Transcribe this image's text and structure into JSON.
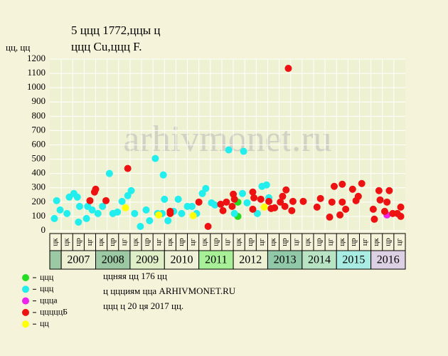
{
  "chart_data": {
    "type": "scatter",
    "title": "5 ццц 1772,ццы ц",
    "subtitle": "ццц Cu,ццц F.",
    "y_label": "цц, цц",
    "watermark": "arhivmonet.ru",
    "xlim": [
      0,
      31
    ],
    "ylim": [
      0,
      1200
    ],
    "yticks": [
      0,
      100,
      200,
      300,
      400,
      500,
      600,
      700,
      800,
      900,
      1000,
      1100,
      1200
    ],
    "grid": true,
    "column_labels": [
      "цк",
      "цк",
      "цр",
      "цг",
      "цк",
      "цр",
      "цг",
      "цк",
      "цр",
      "цг",
      "цк",
      "цр",
      "цг",
      "цк",
      "цр",
      "цг",
      "цк",
      "цр",
      "цг",
      "цк",
      "цр",
      "цг",
      "цк",
      "цр",
      "цг",
      "цк",
      "цр",
      "цг",
      "цк",
      "цр",
      "цг"
    ],
    "years": [
      "2007",
      "2008",
      "2009",
      "2010",
      "2011",
      "2012",
      "2013",
      "2014",
      "2015",
      "2016"
    ],
    "year_colors": [
      "#eef0d4",
      "#9cc8a4",
      "#dff0c8",
      "#f0f2d8",
      "#a8f098",
      "#eef0d4",
      "#90c8a8",
      "#b8e4c4",
      "#a8ece4",
      "#dcd0e4"
    ],
    "series": [
      {
        "name": "ццц",
        "color": "#22dd22",
        "x": [
          16.4,
          16.4
        ],
        "values": [
          100,
          200
        ]
      },
      {
        "name": "ццц",
        "color": "#22eeee",
        "x": [
          0.4,
          0.6,
          0.9,
          1.5,
          1.7,
          2.1,
          2.4,
          2.5,
          2.6,
          3.2,
          3.3,
          3.7,
          4.2,
          4.6,
          5.2,
          5.5,
          5.9,
          6.3,
          6.8,
          7.1,
          7.4,
          7.9,
          8.4,
          8.7,
          9.2,
          9.4,
          9.8,
          9.9,
          10.0,
          10.3,
          10.8,
          11.2,
          11.5,
          12.0,
          12.4,
          12.8,
          13.3,
          13.6,
          14.1,
          14.4,
          15.6,
          16.1,
          16.9,
          16.8,
          17.2,
          18.1,
          18.5,
          18.9,
          19.1
        ],
        "values": [
          85,
          210,
          145,
          120,
          235,
          260,
          235,
          60,
          170,
          85,
          170,
          145,
          120,
          170,
          400,
          120,
          130,
          205,
          245,
          280,
          120,
          30,
          145,
          70,
          505,
          120,
          120,
          390,
          220,
          70,
          135,
          220,
          120,
          170,
          170,
          120,
          260,
          295,
          195,
          180,
          565,
          120,
          555,
          260,
          195,
          120,
          310,
          320,
          230
        ]
      },
      {
        "name": "ццца",
        "color": "#ee22ee",
        "x": [
          29.4
        ],
        "values": [
          110
        ]
      },
      {
        "name": "цццццБ",
        "color": "#ee1111",
        "x": [
          3.5,
          3.9,
          4.0,
          4.9,
          6.8,
          10.5,
          10.5,
          13.0,
          13.8,
          14.9,
          15.1,
          15.4,
          16.0,
          16.1,
          15.9,
          17.7,
          17.8,
          17.7,
          18.4,
          19.1,
          19.3,
          19.6,
          20.1,
          20.3,
          20.6,
          20.8,
          20.5,
          21.1,
          21.2,
          22.1,
          23.3,
          23.6,
          24.4,
          24.6,
          24.8,
          25.3,
          25.5,
          25.5,
          25.8,
          26.4,
          26.7,
          26.9,
          27.2,
          28.2,
          28.3,
          28.7,
          28.8,
          29.2,
          29.4,
          29.6,
          29.9,
          30.3,
          30.6,
          30.6
        ],
        "values": [
          210,
          270,
          290,
          210,
          435,
          135,
          120,
          200,
          30,
          185,
          140,
          200,
          255,
          220,
          170,
          150,
          230,
          270,
          220,
          205,
          155,
          160,
          200,
          240,
          285,
          1135,
          170,
          140,
          205,
          205,
          165,
          225,
          95,
          200,
          310,
          110,
          325,
          200,
          150,
          290,
          210,
          240,
          330,
          150,
          80,
          280,
          215,
          135,
          200,
          280,
          120,
          120,
          165,
          100
        ]
      },
      {
        "name": "цц",
        "color": "#ffff00",
        "x": [
          6.6,
          9.5,
          12.5,
          18.7
        ],
        "values": [
          160,
          110,
          105,
          165
        ]
      }
    ],
    "notes": [
      "ццняя цц 176 цц",
      "ц ццциям цца ARHIVMONET.RU",
      "ццц ц 20 ця 2017 цц."
    ]
  }
}
